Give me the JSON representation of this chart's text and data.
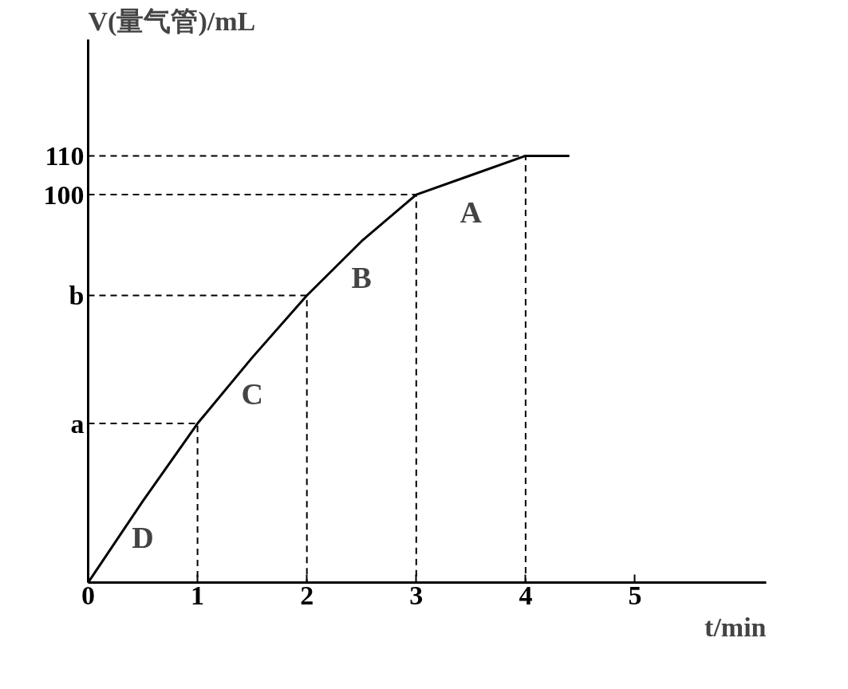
{
  "chart_data": {
    "type": "line",
    "ylabel": "V(量气管)/mL",
    "xlabel": "t/min",
    "xlim": [
      0,
      6.2
    ],
    "ylim": [
      0,
      140
    ],
    "xticks": [
      0,
      1,
      2,
      3,
      4,
      5
    ],
    "yticks": [
      {
        "value": 41,
        "label": "a"
      },
      {
        "value": 74,
        "label": "b"
      },
      100,
      110
    ],
    "grid": false,
    "marker": "none",
    "series": [
      {
        "color": "#000000",
        "line_style": "solid",
        "x": [
          0,
          0.5,
          1,
          1.5,
          2,
          2.5,
          3,
          3.5,
          4,
          4.4
        ],
        "values": [
          0,
          21,
          41,
          58,
          74,
          88,
          100,
          105,
          110,
          110
        ]
      },
      {
        "color": "#000000",
        "line_style": "dashed",
        "x": [
          0,
          1,
          1
        ],
        "values": [
          41,
          41,
          0
        ]
      },
      {
        "color": "#000000",
        "line_style": "dashed",
        "x": [
          0,
          2,
          2
        ],
        "values": [
          74,
          74,
          0
        ]
      },
      {
        "color": "#000000",
        "line_style": "dashed",
        "x": [
          0,
          3,
          3
        ],
        "values": [
          100,
          100,
          0
        ]
      },
      {
        "color": "#000000",
        "line_style": "dashed",
        "x": [
          0,
          4,
          4
        ],
        "values": [
          110,
          110,
          0
        ]
      }
    ],
    "annotations": [
      "A",
      "B",
      "C",
      "D"
    ]
  }
}
